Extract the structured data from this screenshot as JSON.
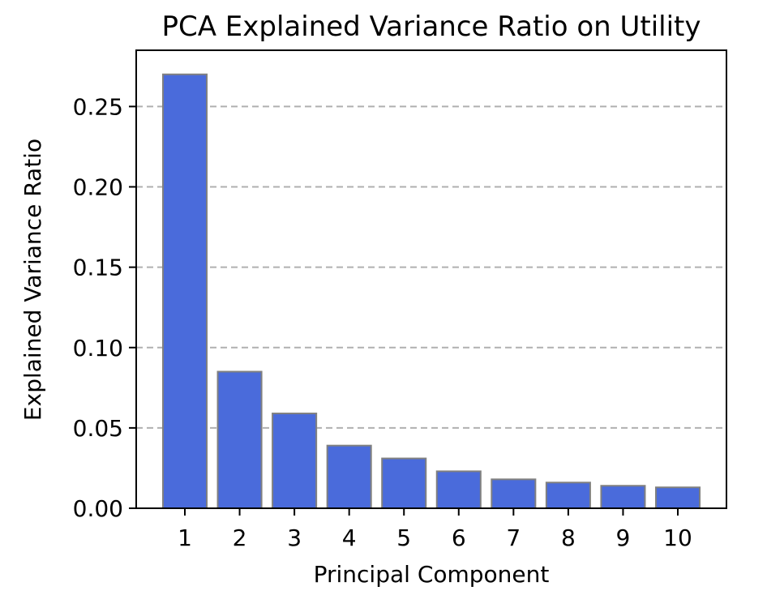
{
  "chart_data": {
    "type": "bar",
    "title": "PCA Explained Variance Ratio on Utility",
    "xlabel": "Principal Component",
    "ylabel": "Explained Variance Ratio",
    "categories": [
      "1",
      "2",
      "3",
      "4",
      "5",
      "6",
      "7",
      "8",
      "9",
      "10"
    ],
    "values": [
      0.27,
      0.085,
      0.059,
      0.039,
      0.031,
      0.023,
      0.018,
      0.016,
      0.014,
      0.013
    ],
    "ylim": [
      0,
      0.285
    ],
    "yticks": [
      0.0,
      0.05,
      0.1,
      0.15,
      0.2,
      0.25
    ],
    "ytick_labels": [
      "0.00",
      "0.05",
      "0.10",
      "0.15",
      "0.20",
      "0.25"
    ],
    "grid": "y-dashed",
    "bar_color": "#4a6bdb",
    "bar_edge_color": "#808080",
    "grid_color": "#b0b0b0"
  }
}
